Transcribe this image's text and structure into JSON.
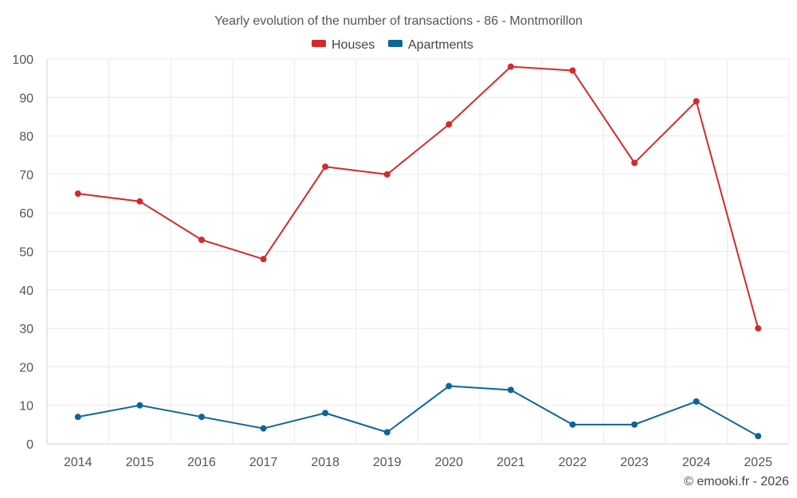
{
  "chart_data": {
    "type": "line",
    "title": "Yearly evolution of the number of transactions - 86 - Montmorillon",
    "xlabel": "",
    "ylabel": "",
    "categories": [
      "2014",
      "2015",
      "2016",
      "2017",
      "2018",
      "2019",
      "2020",
      "2021",
      "2022",
      "2023",
      "2024",
      "2025"
    ],
    "ylim": [
      0,
      100
    ],
    "yticks": [
      0,
      10,
      20,
      30,
      40,
      50,
      60,
      70,
      80,
      90,
      100
    ],
    "grid": true,
    "legend_position": "top-center",
    "series": [
      {
        "name": "Houses",
        "color": "#d42a2a",
        "values": [
          65,
          63,
          53,
          48,
          72,
          70,
          83,
          98,
          97,
          73,
          89,
          30
        ]
      },
      {
        "name": "Apartments",
        "color": "#0a6699",
        "values": [
          7,
          10,
          7,
          4,
          8,
          3,
          15,
          14,
          5,
          5,
          11,
          2
        ]
      }
    ]
  },
  "credit": "© emooki.fr - 2026"
}
